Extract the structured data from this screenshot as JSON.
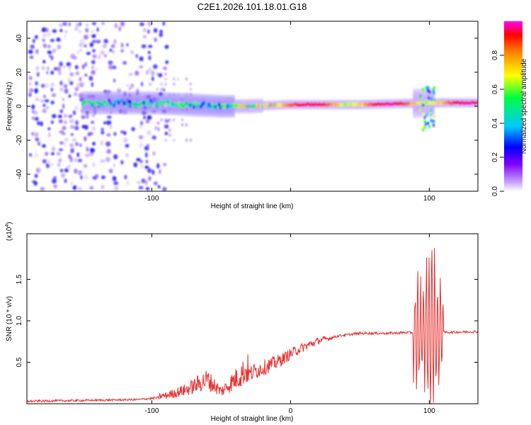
{
  "figure": {
    "title": "C2E1.2026.101.18.01.G18"
  },
  "chart_data": [
    {
      "type": "heatmap",
      "title": "C2E1.2026.101.18.01.G18",
      "xlabel": "Height of straight line (km)",
      "ylabel": "Frequency (Hz)",
      "xlim": [
        -190,
        135
      ],
      "ylim": [
        -50,
        50
      ],
      "x_ticks": [
        -100,
        0,
        100
      ],
      "x_tick_labels": [
        "-100",
        "",
        "100"
      ],
      "y_ticks": [
        -40,
        -20,
        0,
        20,
        40
      ],
      "y_tick_labels": [
        "-40",
        "-20",
        "0",
        "20",
        "40"
      ],
      "ridge": {
        "x_start": -150,
        "x_end": 135,
        "center_frequency": [
          {
            "x": -150,
            "f": 2
          },
          {
            "x": -100,
            "f": 2
          },
          {
            "x": -50,
            "f": 0
          },
          {
            "x": -30,
            "f": 0
          },
          {
            "x": 0,
            "f": 1
          },
          {
            "x": 50,
            "f": 1
          },
          {
            "x": 100,
            "f": 2
          },
          {
            "x": 135,
            "f": 2
          }
        ],
        "peak_amplitude_region_km": [
          -40,
          135
        ]
      },
      "colorbar": {
        "label": "Normalized spectral amplitude",
        "range": [
          0.0,
          1.0
        ],
        "ticks": [
          0.0,
          0.2,
          0.4,
          0.6,
          0.8
        ],
        "tick_labels": [
          "0.0",
          "0.2",
          "0.4",
          "0.6",
          "0.8"
        ],
        "colors": [
          "#ffffff",
          "#a070ff",
          "#0000ff",
          "#00c0ff",
          "#00ff00",
          "#ffff00",
          "#ff8000",
          "#ff0000",
          "#ff00ff"
        ]
      }
    },
    {
      "type": "line",
      "xlabel": "Height of straight line (km)",
      "ylabel": "SNR (10 * v/v)",
      "y_multiplier": "(x10",
      "y_multiplier_exp": "4",
      "y_multiplier_close": ")",
      "xlim": [
        -190,
        135
      ],
      "ylim": [
        0,
        2.05
      ],
      "x_ticks": [
        -100,
        0,
        100
      ],
      "x_tick_labels": [
        "-100",
        "0",
        "100"
      ],
      "y_ticks": [
        0.5,
        1.0,
        1.5
      ],
      "y_tick_labels": [
        "0.5",
        "1.0",
        "1.5"
      ],
      "color": "#e83030",
      "series": [
        {
          "name": "SNR",
          "points": [
            {
              "x": -190,
              "y": 0.03
            },
            {
              "x": -150,
              "y": 0.04
            },
            {
              "x": -110,
              "y": 0.05
            },
            {
              "x": -90,
              "y": 0.08
            },
            {
              "x": -75,
              "y": 0.14
            },
            {
              "x": -60,
              "y": 0.24
            },
            {
              "x": -50,
              "y": 0.12
            },
            {
              "x": -35,
              "y": 0.3
            },
            {
              "x": -25,
              "y": 0.4
            },
            {
              "x": -10,
              "y": 0.5
            },
            {
              "x": 5,
              "y": 0.65
            },
            {
              "x": 20,
              "y": 0.76
            },
            {
              "x": 35,
              "y": 0.82
            },
            {
              "x": 50,
              "y": 0.85
            },
            {
              "x": 70,
              "y": 0.85
            },
            {
              "x": 88,
              "y": 0.86
            },
            {
              "x": 96,
              "y": 1.5
            },
            {
              "x": 100,
              "y": 0.02
            },
            {
              "x": 102,
              "y": 2.0
            },
            {
              "x": 105,
              "y": 1.15
            },
            {
              "x": 110,
              "y": 0.86
            },
            {
              "x": 135,
              "y": 0.87
            }
          ]
        }
      ]
    }
  ]
}
